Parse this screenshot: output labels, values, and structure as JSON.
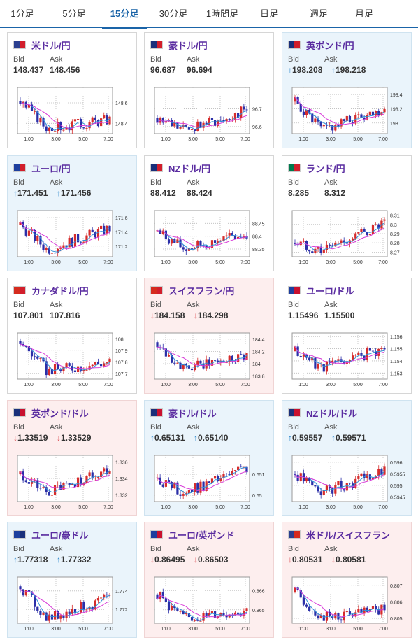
{
  "tabs": [
    {
      "label": "1分足",
      "active": false
    },
    {
      "label": "5分足",
      "active": false
    },
    {
      "label": "15分足",
      "active": true
    },
    {
      "label": "30分足",
      "active": false
    },
    {
      "label": "1時間足",
      "active": false
    },
    {
      "label": "日足",
      "active": false
    },
    {
      "label": "週足",
      "active": false
    },
    {
      "label": "月足",
      "active": false
    }
  ],
  "labels": {
    "bid": "Bid",
    "ask": "Ask"
  },
  "x_ticks": [
    "1:00",
    "3:00",
    "5:00",
    "7:00"
  ],
  "colors": {
    "candle_up": "#d62c2c",
    "candle_down": "#2b2fa8",
    "ma_short": "#2e8fd8",
    "ma_long": "#d83bd8",
    "up_bg": "#eaf4fb",
    "down_bg": "#fdeeee"
  },
  "pairs": [
    {
      "name": "米ドル/円",
      "flag": "us-jp",
      "bid": "148.437",
      "ask": "148.456",
      "trend": "none",
      "ticks": [
        "148.6",
        "148.4"
      ],
      "ylim": [
        148.3,
        148.75
      ],
      "start": 148.62,
      "end": 148.44,
      "dip": 148.35
    },
    {
      "name": "豪ドル/円",
      "flag": "au-jp",
      "bid": "96.687",
      "ask": "96.694",
      "trend": "none",
      "ticks": [
        "96.7",
        "96.6"
      ],
      "ylim": [
        96.56,
        96.82
      ],
      "start": 96.65,
      "end": 96.69,
      "dip": 96.58
    },
    {
      "name": "英ポンド/円",
      "flag": "gb-jp",
      "bid": "198.208",
      "ask": "198.218",
      "trend": "up",
      "ticks": [
        "198.4",
        "198.2",
        "198"
      ],
      "ylim": [
        197.85,
        198.5
      ],
      "start": 198.3,
      "end": 198.21,
      "dip": 197.9
    },
    {
      "name": "ユーロ/円",
      "flag": "eu-jp",
      "bid": "171.451",
      "ask": "171.456",
      "trend": "up",
      "ticks": [
        "171.6",
        "171.4",
        "171.2"
      ],
      "ylim": [
        171.05,
        171.7
      ],
      "start": 171.5,
      "end": 171.45,
      "dip": 171.15
    },
    {
      "name": "NZドル/円",
      "flag": "nz-jp",
      "bid": "88.412",
      "ask": "88.424",
      "trend": "none",
      "ticks": [
        "88.45",
        "88.4",
        "88.35"
      ],
      "ylim": [
        88.32,
        88.5
      ],
      "start": 88.42,
      "end": 88.41,
      "dip": 88.35
    },
    {
      "name": "ランド/円",
      "flag": "za-jp",
      "bid": "8.285",
      "ask": "8.312",
      "trend": "none",
      "ticks": [
        "8.31",
        "8.3",
        "8.29",
        "8.28",
        "8.27"
      ],
      "ylim": [
        8.265,
        8.315
      ],
      "start": 8.28,
      "end": 8.3,
      "dip": 8.272
    },
    {
      "name": "カナダドル/円",
      "flag": "ca-jp",
      "bid": "107.801",
      "ask": "107.816",
      "trend": "none",
      "ticks": [
        "108",
        "107.9",
        "107.8",
        "107.7"
      ],
      "ylim": [
        107.65,
        108.05
      ],
      "start": 107.98,
      "end": 107.8,
      "dip": 107.72
    },
    {
      "name": "スイスフラン/円",
      "flag": "ch-jp",
      "bid": "184.158",
      "ask": "184.298",
      "trend": "down",
      "ticks": [
        "184.4",
        "184.2",
        "184",
        "183.8"
      ],
      "ylim": [
        183.75,
        184.5
      ],
      "start": 184.35,
      "end": 184.16,
      "dip": 183.9
    },
    {
      "name": "ユーロ/ドル",
      "flag": "eu-us",
      "bid": "1.15496",
      "ask": "1.15500",
      "trend": "none",
      "ticks": [
        "1.156",
        "1.155",
        "1.154",
        "1.153"
      ],
      "ylim": [
        1.1525,
        1.1563
      ],
      "start": 1.1548,
      "end": 1.155,
      "dip": 1.1535
    },
    {
      "name": "英ポンド/ドル",
      "flag": "gb-us",
      "bid": "1.33519",
      "ask": "1.33529",
      "trend": "down",
      "ticks": [
        "1.336",
        "1.334",
        "1.332"
      ],
      "ylim": [
        1.3312,
        1.3368
      ],
      "start": 1.3345,
      "end": 1.3352,
      "dip": 1.3322
    },
    {
      "name": "豪ドル/ドル",
      "flag": "au-us",
      "bid": "0.65131",
      "ask": "0.65140",
      "trend": "up",
      "ticks": [
        "0.651",
        "0.65"
      ],
      "ylim": [
        0.6497,
        0.6519
      ],
      "start": 0.6508,
      "end": 0.6513,
      "dip": 0.6501
    },
    {
      "name": "NZドル/ドル",
      "flag": "nz-us",
      "bid": "0.59557",
      "ask": "0.59571",
      "trend": "up",
      "ticks": [
        "0.596",
        "0.5955",
        "0.595",
        "0.5945"
      ],
      "ylim": [
        0.5943,
        0.5963
      ],
      "start": 0.5955,
      "end": 0.5956,
      "dip": 0.5947
    },
    {
      "name": "ユーロ/豪ドル",
      "flag": "eu-au",
      "bid": "1.77318",
      "ask": "1.77332",
      "trend": "up",
      "ticks": [
        "1.774",
        "1.772"
      ],
      "ylim": [
        1.7705,
        1.7755
      ],
      "start": 1.7745,
      "end": 1.7732,
      "dip": 1.771
    },
    {
      "name": "ユーロ/英ポンド",
      "flag": "eu-gb",
      "bid": "0.86495",
      "ask": "0.86503",
      "trend": "down",
      "ticks": [
        "0.866",
        "0.865"
      ],
      "ylim": [
        0.8643,
        0.8667
      ],
      "start": 0.8658,
      "end": 0.865,
      "dip": 0.8645
    },
    {
      "name": "米ドル/スイスフラン",
      "flag": "us-ch",
      "bid": "0.80531",
      "ask": "0.80581",
      "trend": "down",
      "ticks": [
        "0.807",
        "0.806",
        "0.805"
      ],
      "ylim": [
        0.8047,
        0.8075
      ],
      "start": 0.8066,
      "end": 0.8055,
      "dip": 0.805
    }
  ]
}
